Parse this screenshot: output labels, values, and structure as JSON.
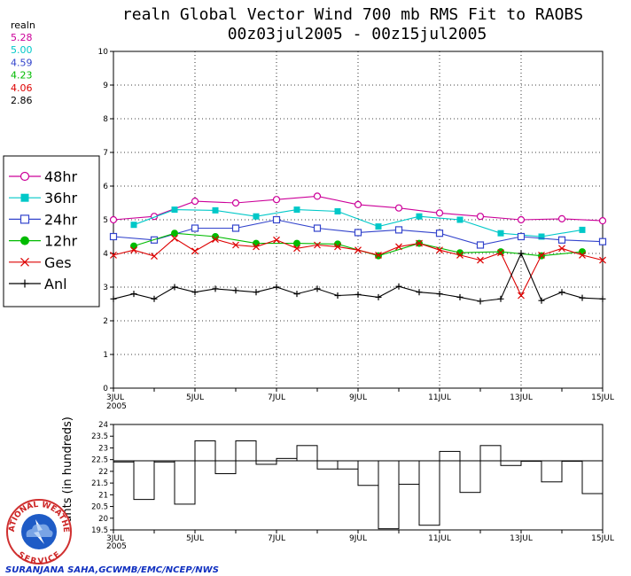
{
  "title_line1": "realn Global Vector Wind 700 mb RMS Fit to RAOBS",
  "title_line2": "00z03jul2005 - 00z15jul2005",
  "colors": {
    "48hr": "#cc0099",
    "36hr": "#00c8c8",
    "24hr": "#3344cc",
    "12hr": "#00bb00",
    "ges": "#dd0000",
    "anl": "#000000"
  },
  "stats": {
    "header": "realn",
    "rows": [
      {
        "key": "48hr",
        "value": "5.28"
      },
      {
        "key": "36hr",
        "value": "5.00"
      },
      {
        "key": "24hr",
        "value": "4.59"
      },
      {
        "key": "12hr",
        "value": "4.23"
      },
      {
        "key": "ges",
        "value": "4.06"
      },
      {
        "key": "anl",
        "value": "2.86"
      }
    ]
  },
  "legend": [
    {
      "key": "48hr",
      "label": "48hr",
      "marker": "open-circle"
    },
    {
      "key": "36hr",
      "label": "36hr",
      "marker": "filled-square"
    },
    {
      "key": "24hr",
      "label": "24hr",
      "marker": "open-square"
    },
    {
      "key": "12hr",
      "label": "12hr",
      "marker": "filled-circle"
    },
    {
      "key": "ges",
      "label": "Ges",
      "marker": "x"
    },
    {
      "key": "anl",
      "label": "Anl",
      "marker": "plus"
    }
  ],
  "x_ticks": [
    {
      "x": 3,
      "label": "3JUL",
      "sub": "2005"
    },
    {
      "x": 5,
      "label": "5JUL"
    },
    {
      "x": 7,
      "label": "7JUL"
    },
    {
      "x": 9,
      "label": "9JUL"
    },
    {
      "x": 11,
      "label": "11JUL"
    },
    {
      "x": 13,
      "label": "13JUL"
    },
    {
      "x": 15,
      "label": "15JUL"
    }
  ],
  "chart_data": [
    {
      "type": "line",
      "title": "realn Global Vector Wind 700 mb RMS Fit to RAOBS",
      "subtitle": "00z03jul2005 - 00z15jul2005",
      "xlim": [
        3,
        15
      ],
      "ylim": [
        0,
        10
      ],
      "yticks": [
        0,
        1,
        2,
        3,
        4,
        5,
        6,
        7,
        8,
        9,
        10
      ],
      "series": [
        {
          "key": "48hr",
          "name": "48hr",
          "x": [
            3,
            4,
            5,
            6,
            7,
            8,
            9,
            10,
            11,
            12,
            13,
            14,
            15
          ],
          "y": [
            5.0,
            5.1,
            5.55,
            5.5,
            5.6,
            5.7,
            5.45,
            5.35,
            5.2,
            5.1,
            5.0,
            5.03,
            4.97
          ]
        },
        {
          "key": "36hr",
          "name": "36hr",
          "x": [
            3.5,
            4.5,
            5.5,
            6.5,
            7.5,
            8.5,
            9.5,
            10.5,
            11.5,
            12.5,
            13.5,
            14.5
          ],
          "y": [
            4.85,
            5.3,
            5.28,
            5.1,
            5.3,
            5.25,
            4.8,
            5.1,
            5.0,
            4.6,
            4.5,
            4.7
          ]
        },
        {
          "key": "24hr",
          "name": "24hr",
          "x": [
            3,
            4,
            5,
            6,
            7,
            8,
            9,
            10,
            11,
            12,
            13,
            14,
            15
          ],
          "y": [
            4.5,
            4.4,
            4.75,
            4.75,
            5.0,
            4.75,
            4.62,
            4.7,
            4.6,
            4.25,
            4.5,
            4.4,
            4.35
          ]
        },
        {
          "key": "12hr",
          "name": "12hr",
          "x": [
            3.5,
            4.5,
            5.5,
            6.5,
            7.5,
            8.5,
            9.5,
            10.5,
            11.5,
            12.5,
            13.5,
            14.5
          ],
          "y": [
            4.22,
            4.6,
            4.5,
            4.3,
            4.3,
            4.28,
            3.93,
            4.3,
            4.02,
            4.05,
            3.93,
            4.05
          ]
        },
        {
          "key": "ges",
          "name": "Ges",
          "x": [
            3,
            3.5,
            4,
            4.5,
            5,
            5.5,
            6,
            6.5,
            7,
            7.5,
            8,
            8.5,
            9,
            9.5,
            10,
            10.5,
            11,
            11.5,
            12,
            12.5,
            13,
            13.5,
            14,
            14.5,
            15
          ],
          "y": [
            3.95,
            4.1,
            3.92,
            4.45,
            4.07,
            4.42,
            4.25,
            4.2,
            4.4,
            4.15,
            4.25,
            4.2,
            4.1,
            3.95,
            4.2,
            4.3,
            4.1,
            3.95,
            3.8,
            4.02,
            2.75,
            3.95,
            4.15,
            3.95,
            3.8
          ]
        },
        {
          "key": "anl",
          "name": "Anl",
          "x": [
            3,
            3.5,
            4,
            4.5,
            5,
            5.5,
            6,
            6.5,
            7,
            7.5,
            8,
            8.5,
            9,
            9.5,
            10,
            10.5,
            11,
            11.5,
            12,
            12.5,
            13,
            13.5,
            14,
            14.5,
            15
          ],
          "y": [
            2.65,
            2.8,
            2.65,
            3.0,
            2.85,
            2.95,
            2.9,
            2.85,
            3.0,
            2.8,
            2.95,
            2.75,
            2.78,
            2.7,
            3.02,
            2.85,
            2.8,
            2.7,
            2.58,
            2.65,
            4.0,
            2.6,
            2.85,
            2.68,
            2.65
          ]
        }
      ]
    },
    {
      "type": "bar",
      "ylabel": "Counts (in hundreds)",
      "xlim": [
        3,
        15
      ],
      "ylim": [
        19.5,
        24
      ],
      "yticks": [
        19.5,
        20,
        20.5,
        21,
        21.5,
        22,
        22.5,
        23,
        23.5,
        24
      ],
      "ytick_labels": [
        "19.5",
        "20",
        "20.5",
        "21",
        "21.5",
        "22",
        "22.5",
        "23",
        "23.5",
        "24"
      ],
      "mean_line": 22.45,
      "bin_width": 0.5,
      "x": [
        3,
        3.5,
        4,
        4.5,
        5,
        5.5,
        6,
        6.5,
        7,
        7.5,
        8,
        8.5,
        9,
        9.5,
        10,
        10.5,
        11,
        11.5,
        12,
        12.5,
        13,
        13.5,
        14,
        14.5
      ],
      "values": [
        22.4,
        20.8,
        22.4,
        20.6,
        23.3,
        21.9,
        23.3,
        22.3,
        22.55,
        23.1,
        22.1,
        22.1,
        21.4,
        19.55,
        21.45,
        19.7,
        22.85,
        21.1,
        23.1,
        22.25,
        22.45,
        21.55,
        22.45,
        21.05
      ]
    }
  ],
  "credit": "SURANJANA SAHA,GCWMB/EMC/NCEP/NWS",
  "logo": {
    "text_top": "NATIONAL WEATHER",
    "text_bottom": "SERVICE"
  }
}
